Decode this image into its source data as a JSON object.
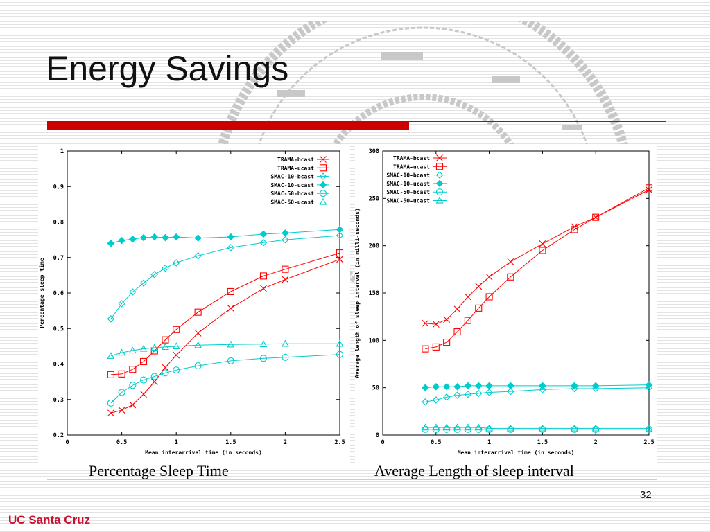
{
  "slide": {
    "title": "Energy Savings",
    "page_number": "32",
    "logo_text": "UC Santa Cruz",
    "accent_color": "#cc0000"
  },
  "chart_data": [
    {
      "type": "line",
      "caption": "Percentage Sleep Time",
      "xlabel": "Mean interarrival time (in seconds)",
      "ylabel": "Percentage sleep time",
      "xlim": [
        0,
        2.5
      ],
      "ylim": [
        0.2,
        1
      ],
      "xticks": [
        0,
        0.5,
        1,
        1.5,
        2,
        2.5
      ],
      "xtick_labels": [
        "0",
        "0.5",
        "1",
        "1.5",
        "2",
        "2.5"
      ],
      "yticks": [
        0.2,
        0.3,
        0.4,
        0.5,
        0.6,
        0.7,
        0.8,
        0.9,
        1
      ],
      "ytick_labels": [
        "0.2",
        "0.3",
        "0.4",
        "0.5",
        "0.6",
        "0.7",
        "0.8",
        "0.9",
        "1"
      ],
      "legend_position": "top-right",
      "series": [
        {
          "name": "TRAMA-bcast",
          "color": "#ff0000",
          "marker": "x",
          "x": [
            0.4,
            0.5,
            0.6,
            0.7,
            0.8,
            0.9,
            1.0,
            1.2,
            1.5,
            1.8,
            2.0,
            2.5
          ],
          "y": [
            0.262,
            0.27,
            0.285,
            0.315,
            0.35,
            0.39,
            0.425,
            0.487,
            0.557,
            0.613,
            0.638,
            0.695
          ]
        },
        {
          "name": "TRAMA-ucast",
          "color": "#ff0000",
          "marker": "square",
          "x": [
            0.4,
            0.5,
            0.6,
            0.7,
            0.8,
            0.9,
            1.0,
            1.2,
            1.5,
            1.8,
            2.0,
            2.5
          ],
          "y": [
            0.37,
            0.372,
            0.385,
            0.407,
            0.437,
            0.468,
            0.497,
            0.546,
            0.604,
            0.648,
            0.667,
            0.713
          ]
        },
        {
          "name": "SMAC-10-bcast",
          "color": "#00cccc",
          "marker": "diamond-open",
          "x": [
            0.4,
            0.5,
            0.6,
            0.7,
            0.8,
            0.9,
            1.0,
            1.2,
            1.5,
            1.8,
            2.0,
            2.5
          ],
          "y": [
            0.527,
            0.57,
            0.603,
            0.628,
            0.652,
            0.67,
            0.685,
            0.705,
            0.728,
            0.742,
            0.75,
            0.762
          ]
        },
        {
          "name": "SMAC-10-ucast",
          "color": "#00cccc",
          "marker": "diamond-filled",
          "x": [
            0.4,
            0.5,
            0.6,
            0.7,
            0.8,
            0.9,
            1.0,
            1.2,
            1.5,
            1.8,
            2.0,
            2.5
          ],
          "y": [
            0.74,
            0.748,
            0.752,
            0.756,
            0.758,
            0.756,
            0.758,
            0.755,
            0.758,
            0.766,
            0.769,
            0.779
          ]
        },
        {
          "name": "SMAC-50-bcast",
          "color": "#00cccc",
          "marker": "circle",
          "x": [
            0.4,
            0.5,
            0.6,
            0.7,
            0.8,
            0.9,
            1.0,
            1.2,
            1.5,
            1.8,
            2.0,
            2.5
          ],
          "y": [
            0.29,
            0.32,
            0.34,
            0.355,
            0.365,
            0.375,
            0.383,
            0.395,
            0.409,
            0.416,
            0.419,
            0.427
          ]
        },
        {
          "name": "SMAC-50-ucast",
          "color": "#00cccc",
          "marker": "triangle",
          "x": [
            0.4,
            0.5,
            0.6,
            0.7,
            0.8,
            0.9,
            1.0,
            1.2,
            1.5,
            1.8,
            2.0,
            2.5
          ],
          "y": [
            0.423,
            0.432,
            0.438,
            0.443,
            0.446,
            0.448,
            0.45,
            0.453,
            0.455,
            0.456,
            0.457,
            0.457
          ]
        }
      ]
    },
    {
      "type": "line",
      "caption": "Average Length of sleep interval",
      "xlabel": "Mean interarrival time (in seconds)",
      "ylabel": "Average length of sleep interval (in milli-seconds)",
      "xlim": [
        0,
        2.5
      ],
      "ylim": [
        0,
        300
      ],
      "xticks": [
        0,
        0.5,
        1,
        1.5,
        2,
        2.5
      ],
      "xtick_labels": [
        "0",
        "0.5",
        "1",
        "1.5",
        "2",
        "2.5"
      ],
      "yticks": [
        0,
        50,
        100,
        150,
        200,
        250,
        300
      ],
      "ytick_labels": [
        "0",
        "50",
        "100",
        "150",
        "200",
        "250",
        "300"
      ],
      "legend_position": "top-left",
      "series": [
        {
          "name": "TRAMA-bcast",
          "color": "#ff0000",
          "marker": "x",
          "x": [
            0.4,
            0.5,
            0.6,
            0.7,
            0.8,
            0.9,
            1.0,
            1.2,
            1.5,
            1.8,
            2.0,
            2.5
          ],
          "y": [
            118,
            117,
            122,
            133,
            146,
            157,
            167,
            183,
            202,
            220,
            230,
            259
          ]
        },
        {
          "name": "TRAMA-ucast",
          "color": "#ff0000",
          "marker": "square",
          "x": [
            0.4,
            0.5,
            0.6,
            0.7,
            0.8,
            0.9,
            1.0,
            1.2,
            1.5,
            1.8,
            2.0,
            2.5
          ],
          "y": [
            91,
            93,
            98,
            109,
            121,
            134,
            146,
            167,
            195,
            217,
            230,
            261
          ]
        },
        {
          "name": "SMAC-10-bcast",
          "color": "#00cccc",
          "marker": "diamond-open",
          "x": [
            0.4,
            0.5,
            0.6,
            0.7,
            0.8,
            0.9,
            1.0,
            1.2,
            1.5,
            1.8,
            2.0,
            2.5
          ],
          "y": [
            35,
            37,
            40,
            42,
            43,
            44,
            45,
            46,
            48,
            49,
            49,
            50
          ]
        },
        {
          "name": "SMAC-10-ucast",
          "color": "#00cccc",
          "marker": "diamond-filled",
          "x": [
            0.4,
            0.5,
            0.6,
            0.7,
            0.8,
            0.9,
            1.0,
            1.2,
            1.5,
            1.8,
            2.0,
            2.5
          ],
          "y": [
            50,
            51,
            51,
            51,
            52,
            52,
            52,
            52,
            52,
            52,
            52,
            53
          ]
        },
        {
          "name": "SMAC-50-bcast",
          "color": "#00cccc",
          "marker": "circle",
          "x": [
            0.4,
            0.5,
            0.6,
            0.7,
            0.8,
            0.9,
            1.0,
            1.2,
            1.5,
            1.8,
            2.0,
            2.5
          ],
          "y": [
            6,
            6,
            6,
            6,
            6,
            6,
            6,
            6,
            6,
            6,
            6,
            6
          ]
        },
        {
          "name": "SMAC-50-ucast",
          "color": "#00cccc",
          "marker": "triangle",
          "x": [
            0.4,
            0.5,
            0.6,
            0.7,
            0.8,
            0.9,
            1.0,
            1.2,
            1.5,
            1.8,
            2.0,
            2.5
          ],
          "y": [
            8,
            8,
            8,
            8,
            8,
            8,
            7,
            7,
            7,
            7,
            7,
            7
          ]
        }
      ]
    }
  ]
}
